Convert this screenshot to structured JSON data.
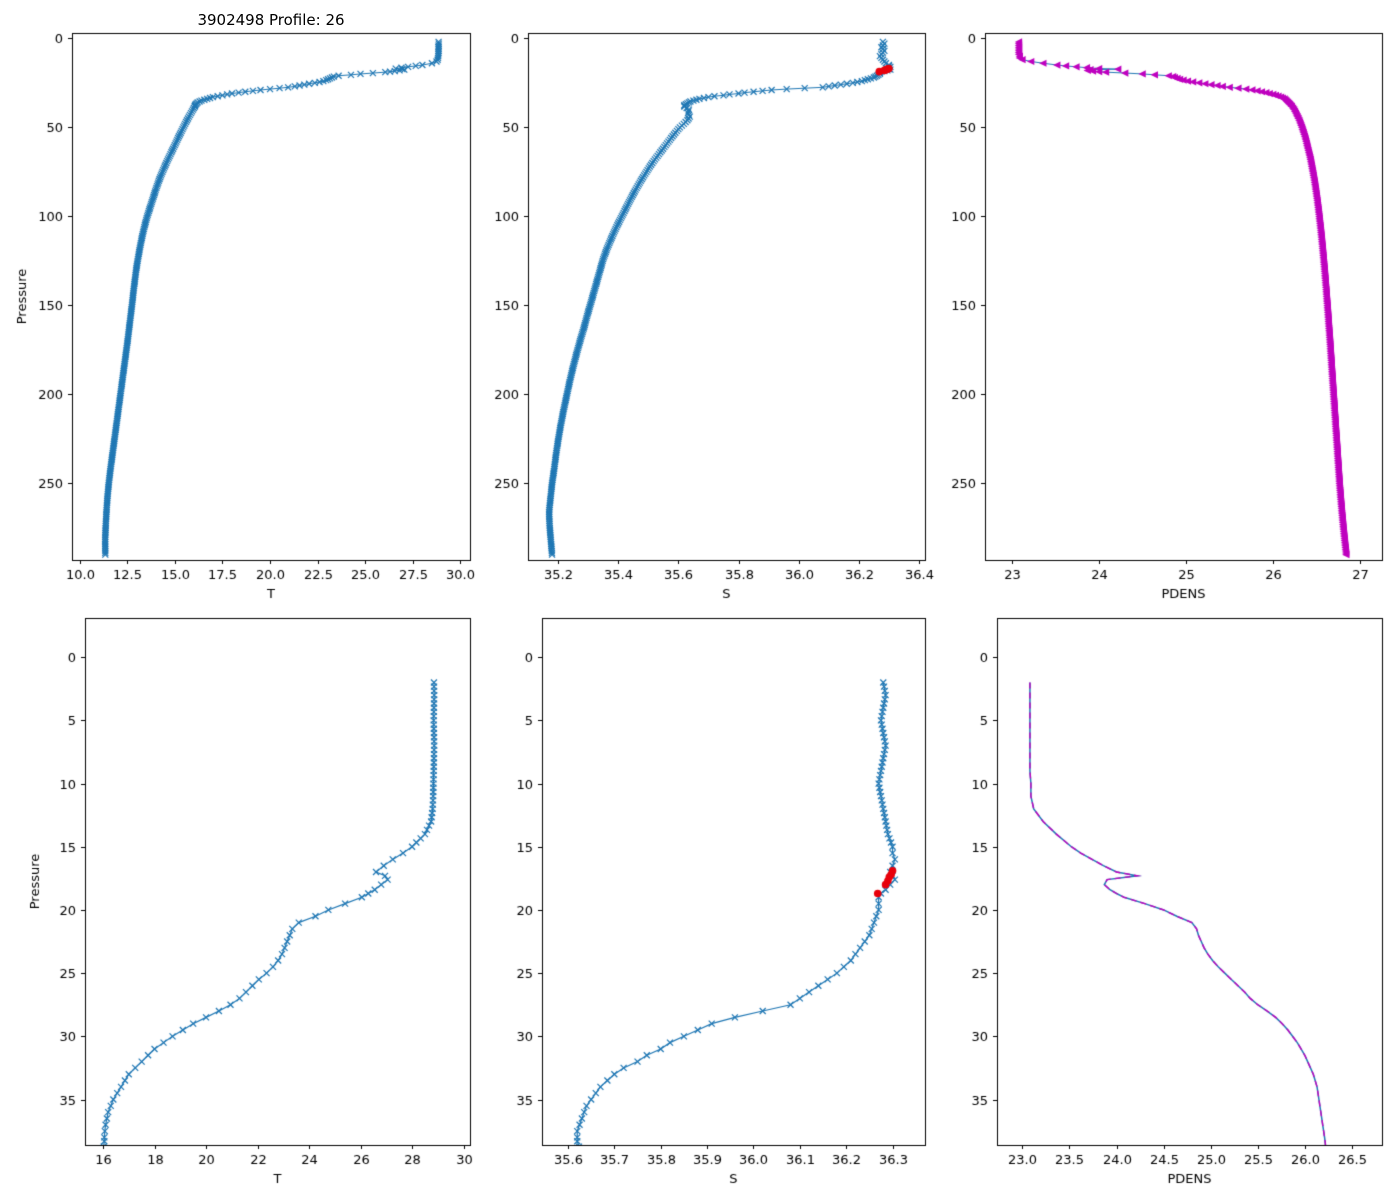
{
  "chart_data": {
    "type": "line",
    "figure_title": "3902498 Profile: 26",
    "colors": {
      "blue": "#1f77b4",
      "magenta": "#bf00bf",
      "red": "#e8000b",
      "axis": "#000000"
    },
    "profile": {
      "pressure": [
        2,
        3,
        4,
        5,
        6,
        7,
        8,
        9,
        10,
        11,
        12,
        13,
        14,
        15,
        15.5,
        16,
        16.5,
        17,
        17.3,
        17.6,
        18,
        18.4,
        18.7,
        19,
        19.5,
        20,
        20.5,
        21,
        21.5,
        22,
        22.5,
        23,
        23.5,
        24,
        24.5,
        25,
        25.5,
        26,
        26.5,
        27,
        27.5,
        28,
        28.5,
        29,
        29.5,
        30,
        30.5,
        31,
        31.5,
        32,
        32.5,
        33,
        33.5,
        34,
        34.5,
        35,
        35.5,
        36,
        36.5,
        37,
        37.5,
        38,
        38.3,
        40,
        42,
        44,
        46,
        48,
        50,
        53,
        56,
        60,
        64,
        68,
        72,
        76,
        80,
        85,
        90,
        95,
        100,
        106,
        112,
        118,
        124,
        130,
        136,
        142,
        148,
        155,
        162,
        170,
        178,
        186,
        194,
        202,
        210,
        218,
        226,
        234,
        242,
        250,
        258,
        266,
        274,
        282,
        290
      ],
      "T": [
        28.85,
        28.86,
        28.85,
        28.84,
        28.85,
        28.86,
        28.85,
        28.84,
        28.83,
        28.82,
        28.8,
        28.74,
        28.5,
        28.0,
        27.65,
        27.25,
        26.9,
        26.6,
        26.95,
        27.05,
        26.8,
        26.55,
        26.3,
        26.05,
        25.4,
        24.75,
        24.25,
        23.6,
        23.35,
        23.25,
        23.15,
        23.05,
        22.95,
        22.8,
        22.6,
        22.35,
        22.05,
        21.8,
        21.55,
        21.3,
        20.95,
        20.5,
        20.0,
        19.5,
        19.1,
        18.7,
        18.35,
        18.0,
        17.75,
        17.5,
        17.25,
        17.0,
        16.85,
        16.7,
        16.55,
        16.4,
        16.3,
        16.2,
        16.15,
        16.1,
        16.07,
        16.05,
        16.05,
        15.95,
        15.85,
        15.74,
        15.64,
        15.54,
        15.45,
        15.31,
        15.17,
        15.0,
        14.82,
        14.64,
        14.47,
        14.31,
        14.16,
        14.0,
        13.85,
        13.7,
        13.55,
        13.4,
        13.27,
        13.16,
        13.06,
        12.97,
        12.9,
        12.83,
        12.77,
        12.69,
        12.61,
        12.52,
        12.42,
        12.32,
        12.22,
        12.12,
        12.02,
        11.92,
        11.82,
        11.72,
        11.62,
        11.53,
        11.46,
        11.41,
        11.37,
        11.34,
        11.35
      ],
      "S": [
        36.28,
        36.285,
        36.28,
        36.275,
        36.28,
        36.285,
        36.28,
        36.275,
        36.27,
        36.275,
        36.28,
        36.285,
        36.29,
        36.3,
        36.3,
        36.305,
        36.3,
        36.295,
        36.3,
        36.305,
        36.295,
        36.285,
        36.275,
        36.27,
        36.27,
        36.27,
        36.265,
        36.26,
        36.255,
        36.25,
        36.24,
        36.23,
        36.22,
        36.21,
        36.195,
        36.18,
        36.16,
        36.14,
        36.12,
        36.1,
        36.08,
        36.02,
        35.96,
        35.91,
        35.88,
        35.85,
        35.82,
        35.8,
        35.77,
        35.75,
        35.72,
        35.7,
        35.685,
        35.67,
        35.66,
        35.65,
        35.64,
        35.635,
        35.63,
        35.625,
        35.62,
        35.62,
        35.62,
        35.635,
        35.632,
        35.638,
        35.63,
        35.618,
        35.605,
        35.59,
        35.576,
        35.558,
        35.54,
        35.522,
        35.505,
        35.49,
        35.475,
        35.458,
        35.442,
        35.427,
        35.412,
        35.394,
        35.378,
        35.363,
        35.35,
        35.34,
        35.33,
        35.32,
        35.31,
        35.298,
        35.287,
        35.273,
        35.26,
        35.248,
        35.237,
        35.227,
        35.217,
        35.208,
        35.2,
        35.193,
        35.187,
        35.18,
        35.175,
        35.17,
        35.172,
        35.176,
        35.18
      ],
      "PDENS": [
        23.08,
        23.08,
        23.08,
        23.08,
        23.08,
        23.08,
        23.08,
        23.08,
        23.09,
        23.09,
        23.12,
        23.22,
        23.36,
        23.52,
        23.62,
        23.74,
        23.86,
        24.0,
        24.22,
        23.9,
        23.87,
        23.93,
        24.0,
        24.08,
        24.3,
        24.5,
        24.64,
        24.8,
        24.85,
        24.87,
        24.9,
        24.93,
        24.97,
        25.02,
        25.08,
        25.15,
        25.22,
        25.29,
        25.36,
        25.42,
        25.5,
        25.6,
        25.69,
        25.76,
        25.82,
        25.87,
        25.92,
        25.96,
        26.0,
        26.03,
        26.06,
        26.09,
        26.11,
        26.13,
        26.14,
        26.15,
        26.16,
        26.17,
        26.18,
        26.19,
        26.2,
        26.21,
        26.215,
        26.24,
        26.26,
        26.28,
        26.3,
        26.315,
        26.33,
        26.35,
        26.37,
        26.39,
        26.41,
        26.43,
        26.445,
        26.46,
        26.475,
        26.49,
        26.505,
        26.518,
        26.53,
        26.544,
        26.557,
        26.569,
        26.58,
        26.591,
        26.601,
        26.611,
        26.62,
        26.631,
        26.641,
        26.653,
        26.664,
        26.675,
        26.686,
        26.697,
        26.708,
        26.719,
        26.73,
        26.741,
        26.752,
        26.763,
        26.776,
        26.79,
        26.805,
        26.822,
        26.84
      ]
    },
    "flagged_salinity": {
      "pressure": [
        16.9,
        17.2,
        17.4,
        17.7,
        18.0,
        18.7
      ],
      "S": [
        36.3,
        36.297,
        36.293,
        36.29,
        36.285,
        36.268
      ]
    },
    "subplots": [
      {
        "id": "T-full",
        "xlabel": "T",
        "ylabel": "Pressure",
        "x_var": "T",
        "xlim": [
          9.6,
          30.5
        ],
        "ylim": [
          -3,
          293
        ],
        "xticks": [
          10.0,
          12.5,
          15.0,
          17.5,
          20.0,
          22.5,
          25.0,
          27.5,
          30.0
        ],
        "xtick_labels": [
          "10.0",
          "12.5",
          "15.0",
          "17.5",
          "20.0",
          "22.5",
          "25.0",
          "27.5",
          "30.0"
        ],
        "yticks": [
          0,
          50,
          100,
          150,
          200,
          250
        ],
        "ytick_labels": [
          "0",
          "50",
          "100",
          "150",
          "200",
          "250"
        ],
        "style": "x-marker",
        "marker_step": 1.0,
        "red_dots": false,
        "line_width": 1.0
      },
      {
        "id": "S-full",
        "xlabel": "S",
        "ylabel": "",
        "x_var": "S",
        "xlim": [
          35.1,
          36.42
        ],
        "ylim": [
          -3,
          293
        ],
        "xticks": [
          35.2,
          35.4,
          35.6,
          35.8,
          36.0,
          36.2,
          36.4
        ],
        "xtick_labels": [
          "35.2",
          "35.4",
          "35.6",
          "35.8",
          "36.0",
          "36.2",
          "36.4"
        ],
        "yticks": [
          0,
          50,
          100,
          150,
          200,
          250
        ],
        "ytick_labels": [
          "0",
          "50",
          "100",
          "150",
          "200",
          "250"
        ],
        "style": "x-marker",
        "marker_step": 1.0,
        "red_dots": true,
        "line_width": 1.0
      },
      {
        "id": "PDENS-full",
        "xlabel": "PDENS",
        "ylabel": "",
        "x_var": "PDENS",
        "xlim": [
          22.69,
          27.25
        ],
        "ylim": [
          -3,
          293
        ],
        "xticks": [
          23,
          24,
          25,
          26,
          27
        ],
        "xtick_labels": [
          "23",
          "24",
          "25",
          "26",
          "27"
        ],
        "yticks": [
          0,
          50,
          100,
          150,
          200,
          250
        ],
        "ytick_labels": [
          "0",
          "50",
          "100",
          "150",
          "200",
          "250"
        ],
        "style": "triangle",
        "marker_step": 1.0,
        "red_dots": false,
        "line_width": 1.0
      },
      {
        "id": "T-zoom",
        "xlabel": "T",
        "ylabel": "Pressure",
        "x_var": "T",
        "xlim": [
          15.3,
          30.25
        ],
        "ylim": [
          -3.1,
          38.6
        ],
        "xticks": [
          16,
          18,
          20,
          22,
          24,
          26,
          28,
          30
        ],
        "xtick_labels": [
          "16",
          "18",
          "20",
          "22",
          "24",
          "26",
          "28",
          "30"
        ],
        "yticks": [
          0,
          5,
          10,
          15,
          20,
          25,
          30,
          35
        ],
        "ytick_labels": [
          "0",
          "5",
          "10",
          "15",
          "20",
          "25",
          "30",
          "35"
        ],
        "style": "x-marker",
        "marker_step": 0.4,
        "red_dots": false,
        "line_width": 1.2
      },
      {
        "id": "S-zoom",
        "xlabel": "S",
        "ylabel": "",
        "x_var": "S",
        "xlim": [
          35.544,
          36.37
        ],
        "ylim": [
          -3.1,
          38.6
        ],
        "xticks": [
          35.6,
          35.7,
          35.8,
          35.9,
          36.0,
          36.1,
          36.2,
          36.3
        ],
        "xtick_labels": [
          "35.6",
          "35.7",
          "35.8",
          "35.9",
          "36.0",
          "36.1",
          "36.2",
          "36.3"
        ],
        "yticks": [
          0,
          5,
          10,
          15,
          20,
          25,
          30,
          35
        ],
        "ytick_labels": [
          "0",
          "5",
          "10",
          "15",
          "20",
          "25",
          "30",
          "35"
        ],
        "style": "x-marker",
        "marker_step": 0.4,
        "red_dots": true,
        "line_width": 1.2
      },
      {
        "id": "PDENS-zoom",
        "xlabel": "PDENS",
        "ylabel": "",
        "x_var": "PDENS",
        "xlim": [
          22.73,
          26.82
        ],
        "ylim": [
          -3.1,
          38.6
        ],
        "xticks": [
          23.0,
          23.5,
          24.0,
          24.5,
          25.0,
          25.5,
          26.0,
          26.5
        ],
        "xtick_labels": [
          "23.0",
          "23.5",
          "24.0",
          "24.5",
          "25.0",
          "25.5",
          "26.0",
          "26.5"
        ],
        "yticks": [
          0,
          5,
          10,
          15,
          20,
          25,
          30,
          35
        ],
        "ytick_labels": [
          "0",
          "5",
          "10",
          "15",
          "20",
          "25",
          "30",
          "35"
        ],
        "style": "dashed-overlay",
        "marker_step": 0.4,
        "red_dots": false,
        "line_width": 1.5
      }
    ]
  }
}
